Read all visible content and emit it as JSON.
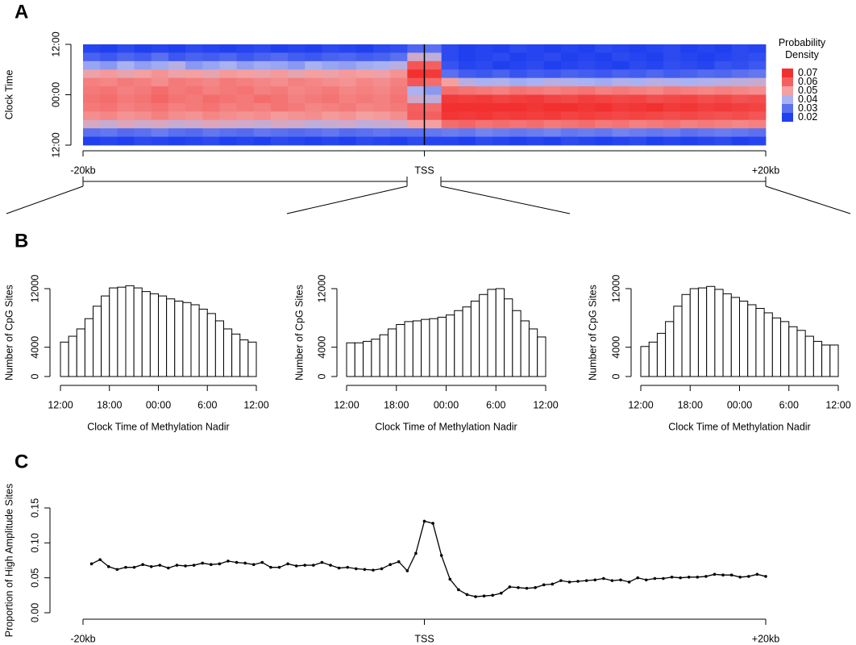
{
  "chart_data": [
    {
      "type": "heatmap",
      "panel_label": "A",
      "ylabel": "Clock Time",
      "xlim": [
        -20,
        20
      ],
      "xticks": [
        {
          "value": -20,
          "label": "-20kb"
        },
        {
          "value": 0,
          "label": "TSS"
        },
        {
          "value": 20,
          "label": "+20kb"
        }
      ],
      "ylim": [
        24,
        0
      ],
      "yticks": [
        {
          "value": 0,
          "label": "12:00"
        },
        {
          "value": 12,
          "label": "00:00"
        },
        {
          "value": 24,
          "label": "12:00"
        }
      ],
      "vline": 0,
      "x": [
        -19.5,
        -18.5,
        -17.5,
        -16.5,
        -15.5,
        -14.5,
        -13.5,
        -12.5,
        -11.5,
        -10.5,
        -9.5,
        -8.5,
        -7.5,
        -6.5,
        -5.5,
        -4.5,
        -3.5,
        -2.5,
        -1.5,
        -0.5,
        0.5,
        1.5,
        2.5,
        3.5,
        4.5,
        5.5,
        6.5,
        7.5,
        8.5,
        9.5,
        10.5,
        11.5,
        12.5,
        13.5,
        14.5,
        15.5,
        16.5,
        17.5,
        18.5,
        19.5
      ],
      "y": [
        1,
        3,
        5,
        7,
        9,
        11,
        13,
        15,
        17,
        19,
        21,
        23
      ],
      "values": [
        [
          0.021,
          0.02,
          0.022,
          0.02,
          0.021,
          0.02,
          0.022,
          0.021,
          0.02,
          0.021,
          0.022,
          0.02,
          0.021,
          0.02,
          0.022,
          0.021,
          0.02,
          0.022,
          0.023,
          0.028,
          0.03,
          0.022,
          0.02,
          0.021,
          0.02,
          0.022,
          0.021,
          0.02,
          0.021,
          0.02,
          0.022,
          0.021,
          0.02,
          0.021,
          0.022,
          0.02,
          0.021,
          0.02,
          0.022,
          0.021
        ],
        [
          0.027,
          0.025,
          0.028,
          0.026,
          0.03,
          0.025,
          0.027,
          0.026,
          0.028,
          0.025,
          0.027,
          0.029,
          0.026,
          0.025,
          0.027,
          0.028,
          0.026,
          0.027,
          0.03,
          0.045,
          0.043,
          0.022,
          0.02,
          0.021,
          0.022,
          0.02,
          0.021,
          0.022,
          0.02,
          0.021,
          0.02,
          0.022,
          0.021,
          0.02,
          0.022,
          0.021,
          0.02,
          0.021,
          0.022,
          0.023
        ],
        [
          0.038,
          0.036,
          0.04,
          0.037,
          0.039,
          0.042,
          0.036,
          0.038,
          0.04,
          0.037,
          0.039,
          0.038,
          0.036,
          0.04,
          0.038,
          0.037,
          0.039,
          0.04,
          0.042,
          0.062,
          0.06,
          0.024,
          0.021,
          0.022,
          0.02,
          0.021,
          0.022,
          0.02,
          0.021,
          0.022,
          0.021,
          0.02,
          0.022,
          0.021,
          0.023,
          0.022,
          0.021,
          0.024,
          0.023,
          0.025
        ],
        [
          0.049,
          0.051,
          0.048,
          0.05,
          0.052,
          0.049,
          0.05,
          0.048,
          0.051,
          0.05,
          0.049,
          0.051,
          0.048,
          0.05,
          0.049,
          0.051,
          0.05,
          0.049,
          0.052,
          0.07,
          0.068,
          0.03,
          0.026,
          0.025,
          0.027,
          0.024,
          0.026,
          0.025,
          0.027,
          0.026,
          0.025,
          0.027,
          0.026,
          0.028,
          0.026,
          0.027,
          0.029,
          0.028,
          0.03,
          0.031
        ],
        [
          0.055,
          0.054,
          0.056,
          0.055,
          0.053,
          0.056,
          0.055,
          0.054,
          0.056,
          0.055,
          0.054,
          0.053,
          0.055,
          0.054,
          0.053,
          0.052,
          0.054,
          0.053,
          0.055,
          0.062,
          0.058,
          0.05,
          0.042,
          0.04,
          0.041,
          0.039,
          0.04,
          0.042,
          0.041,
          0.04,
          0.039,
          0.041,
          0.04,
          0.042,
          0.041,
          0.04,
          0.041,
          0.042,
          0.043,
          0.044
        ],
        [
          0.056,
          0.057,
          0.055,
          0.056,
          0.058,
          0.056,
          0.057,
          0.055,
          0.056,
          0.057,
          0.055,
          0.056,
          0.054,
          0.055,
          0.056,
          0.054,
          0.055,
          0.054,
          0.056,
          0.04,
          0.036,
          0.058,
          0.057,
          0.056,
          0.055,
          0.057,
          0.056,
          0.055,
          0.056,
          0.057,
          0.055,
          0.056,
          0.055,
          0.054,
          0.056,
          0.055,
          0.054,
          0.055,
          0.054,
          0.053
        ],
        [
          0.057,
          0.058,
          0.056,
          0.057,
          0.059,
          0.057,
          0.056,
          0.058,
          0.057,
          0.056,
          0.058,
          0.057,
          0.055,
          0.056,
          0.057,
          0.055,
          0.056,
          0.055,
          0.057,
          0.045,
          0.043,
          0.068,
          0.067,
          0.068,
          0.066,
          0.067,
          0.068,
          0.066,
          0.065,
          0.067,
          0.066,
          0.065,
          0.066,
          0.064,
          0.065,
          0.066,
          0.064,
          0.065,
          0.063,
          0.064
        ],
        [
          0.056,
          0.057,
          0.055,
          0.056,
          0.057,
          0.055,
          0.056,
          0.057,
          0.055,
          0.056,
          0.055,
          0.057,
          0.056,
          0.054,
          0.055,
          0.056,
          0.054,
          0.055,
          0.056,
          0.06,
          0.058,
          0.071,
          0.072,
          0.07,
          0.071,
          0.07,
          0.069,
          0.071,
          0.07,
          0.069,
          0.07,
          0.068,
          0.069,
          0.07,
          0.068,
          0.069,
          0.067,
          0.068,
          0.067,
          0.066
        ],
        [
          0.053,
          0.054,
          0.052,
          0.053,
          0.055,
          0.053,
          0.052,
          0.054,
          0.053,
          0.052,
          0.053,
          0.051,
          0.052,
          0.053,
          0.051,
          0.052,
          0.05,
          0.051,
          0.053,
          0.061,
          0.06,
          0.069,
          0.068,
          0.069,
          0.067,
          0.068,
          0.067,
          0.068,
          0.066,
          0.067,
          0.066,
          0.065,
          0.066,
          0.065,
          0.064,
          0.065,
          0.064,
          0.063,
          0.064,
          0.062
        ],
        [
          0.046,
          0.044,
          0.047,
          0.045,
          0.046,
          0.044,
          0.045,
          0.047,
          0.046,
          0.045,
          0.044,
          0.046,
          0.045,
          0.043,
          0.044,
          0.045,
          0.043,
          0.044,
          0.045,
          0.05,
          0.05,
          0.058,
          0.059,
          0.057,
          0.058,
          0.057,
          0.058,
          0.056,
          0.057,
          0.058,
          0.056,
          0.057,
          0.055,
          0.056,
          0.057,
          0.055,
          0.056,
          0.055,
          0.054,
          0.055
        ],
        [
          0.03,
          0.031,
          0.029,
          0.03,
          0.032,
          0.03,
          0.029,
          0.031,
          0.03,
          0.029,
          0.031,
          0.03,
          0.029,
          0.03,
          0.031,
          0.029,
          0.03,
          0.031,
          0.03,
          0.03,
          0.031,
          0.032,
          0.031,
          0.033,
          0.032,
          0.031,
          0.032,
          0.033,
          0.031,
          0.032,
          0.031,
          0.033,
          0.032,
          0.031,
          0.032,
          0.03,
          0.031,
          0.032,
          0.031,
          0.03
        ],
        [
          0.02,
          0.021,
          0.02,
          0.022,
          0.021,
          0.02,
          0.021,
          0.022,
          0.02,
          0.021,
          0.02,
          0.022,
          0.021,
          0.02,
          0.021,
          0.02,
          0.022,
          0.021,
          0.02,
          0.022,
          0.021,
          0.021,
          0.02,
          0.022,
          0.021,
          0.02,
          0.021,
          0.02,
          0.022,
          0.021,
          0.02,
          0.021,
          0.022,
          0.02,
          0.021,
          0.02,
          0.021,
          0.022,
          0.02,
          0.021
        ]
      ],
      "legend": {
        "title": "Probability Density",
        "ticks": [
          0.07,
          0.06,
          0.05,
          0.04,
          0.03,
          0.02
        ],
        "colors": [
          "#f23030",
          "#f46060",
          "#f4a0a0",
          "#a8b2f2",
          "#5a70f0",
          "#2040f0"
        ]
      }
    },
    {
      "type": "histogram",
      "panel_label": "B",
      "xlabel": "Clock Time of Methylation Nadir",
      "ylabel": "Number of CpG Sites",
      "xlim": [
        0,
        24
      ],
      "xticks": [
        {
          "value": 0,
          "label": "12:00"
        },
        {
          "value": 6,
          "label": "18:00"
        },
        {
          "value": 12,
          "label": "00:00"
        },
        {
          "value": 18,
          "label": "6:00"
        },
        {
          "value": 24,
          "label": "12:00"
        }
      ],
      "ylim": [
        0,
        12000
      ],
      "yticks": [
        0,
        4000,
        12000
      ],
      "bins": [
        0,
        1,
        2,
        3,
        4,
        5,
        6,
        7,
        8,
        9,
        10,
        11,
        12,
        13,
        14,
        15,
        16,
        17,
        18,
        19,
        20,
        21,
        22,
        23,
        24
      ],
      "values": [
        4700,
        5500,
        6500,
        7900,
        9600,
        11000,
        12100,
        12200,
        12400,
        12100,
        11600,
        11300,
        11000,
        10600,
        10300,
        10100,
        9800,
        9200,
        8600,
        7600,
        6500,
        5800,
        5000,
        4700
      ]
    },
    {
      "type": "histogram",
      "xlabel": "Clock Time of Methylation Nadir",
      "ylabel": "Number of CpG Sites",
      "xlim": [
        0,
        24
      ],
      "xticks": [
        {
          "value": 0,
          "label": "12:00"
        },
        {
          "value": 6,
          "label": "18:00"
        },
        {
          "value": 12,
          "label": "00:00"
        },
        {
          "value": 18,
          "label": "6:00"
        },
        {
          "value": 24,
          "label": "12:00"
        }
      ],
      "ylim": [
        0,
        12000
      ],
      "yticks": [
        0,
        4000,
        12000
      ],
      "bins": [
        0,
        1,
        2,
        3,
        4,
        5,
        6,
        7,
        8,
        9,
        10,
        11,
        12,
        13,
        14,
        15,
        16,
        17,
        18,
        19,
        20,
        21,
        22,
        23,
        24
      ],
      "values": [
        4600,
        4600,
        4800,
        5100,
        5700,
        6500,
        7100,
        7500,
        7600,
        7800,
        7900,
        8100,
        8400,
        9000,
        9500,
        10300,
        11200,
        11900,
        12000,
        10600,
        9000,
        7600,
        6500,
        5400
      ]
    },
    {
      "type": "histogram",
      "xlabel": "Clock Time of Methylation Nadir",
      "ylabel": "Number of CpG Sites",
      "xlim": [
        0,
        24
      ],
      "xticks": [
        {
          "value": 0,
          "label": "12:00"
        },
        {
          "value": 6,
          "label": "18:00"
        },
        {
          "value": 12,
          "label": "00:00"
        },
        {
          "value": 18,
          "label": "6:00"
        },
        {
          "value": 24,
          "label": "12:00"
        }
      ],
      "ylim": [
        0,
        12000
      ],
      "yticks": [
        0,
        4000,
        12000
      ],
      "bins": [
        0,
        1,
        2,
        3,
        4,
        5,
        6,
        7,
        8,
        9,
        10,
        11,
        12,
        13,
        14,
        15,
        16,
        17,
        18,
        19,
        20,
        21,
        22,
        23,
        24
      ],
      "values": [
        4100,
        4700,
        5900,
        7500,
        9600,
        11200,
        12000,
        12100,
        12300,
        11900,
        11300,
        10800,
        10300,
        9800,
        9300,
        8700,
        8000,
        7500,
        6800,
        6300,
        5500,
        4800,
        4300,
        4300
      ]
    },
    {
      "type": "line",
      "panel_label": "C",
      "ylabel": "Proportion of High Amplitude Sites",
      "color": "#000000",
      "xlim": [
        -20,
        20
      ],
      "xticks": [
        {
          "value": -20,
          "label": "-20kb"
        },
        {
          "value": 0,
          "label": "TSS"
        },
        {
          "value": 20,
          "label": "+20kb"
        }
      ],
      "ylim": [
        0,
        0.15
      ],
      "yticks": [
        {
          "value": 0,
          "label": "0.00"
        },
        0.05,
        {
          "value": 0.1,
          "label": "0.10"
        },
        0.15
      ],
      "x": [
        -19.5,
        -19,
        -18.5,
        -18,
        -17.5,
        -17,
        -16.5,
        -16,
        -15.5,
        -15,
        -14.5,
        -14,
        -13.5,
        -13,
        -12.5,
        -12,
        -11.5,
        -11,
        -10.5,
        -10,
        -9.5,
        -9,
        -8.5,
        -8,
        -7.5,
        -7,
        -6.5,
        -6,
        -5.5,
        -5,
        -4.5,
        -4,
        -3.5,
        -3,
        -2.5,
        -2,
        -1.5,
        -1,
        -0.5,
        0,
        0.5,
        1,
        1.5,
        2,
        2.5,
        3,
        3.5,
        4,
        4.5,
        5,
        5.5,
        6,
        6.5,
        7,
        7.5,
        8,
        8.5,
        9,
        9.5,
        10,
        10.5,
        11,
        11.5,
        12,
        12.5,
        13,
        13.5,
        14,
        14.5,
        15,
        15.5,
        16,
        16.5,
        17,
        17.5,
        18,
        18.5,
        19,
        19.5,
        20
      ],
      "values": [
        0.07,
        0.076,
        0.066,
        0.062,
        0.065,
        0.065,
        0.069,
        0.066,
        0.068,
        0.064,
        0.068,
        0.067,
        0.068,
        0.071,
        0.069,
        0.07,
        0.074,
        0.072,
        0.071,
        0.069,
        0.072,
        0.065,
        0.065,
        0.07,
        0.067,
        0.068,
        0.068,
        0.072,
        0.068,
        0.064,
        0.065,
        0.063,
        0.062,
        0.061,
        0.063,
        0.069,
        0.073,
        0.06,
        0.085,
        0.131,
        0.128,
        0.082,
        0.048,
        0.033,
        0.026,
        0.023,
        0.024,
        0.025,
        0.028,
        0.037,
        0.036,
        0.035,
        0.036,
        0.04,
        0.041,
        0.046,
        0.044,
        0.045,
        0.046,
        0.047,
        0.049,
        0.046,
        0.047,
        0.044,
        0.05,
        0.047,
        0.049,
        0.049,
        0.051,
        0.05,
        0.051,
        0.051,
        0.052,
        0.055,
        0.054,
        0.054,
        0.051,
        0.052,
        0.055,
        0.052
      ]
    }
  ]
}
